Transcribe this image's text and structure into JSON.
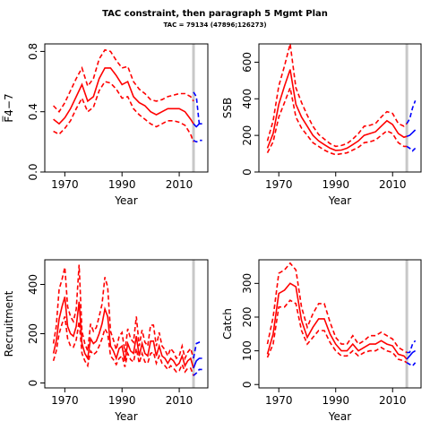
{
  "title": "TAC constraint, then paragraph 5 Mgmt Plan",
  "subtitle": "TAC = 79134 (47896;126273)",
  "colors": {
    "history": "#ff0000",
    "projection": "#0000ff",
    "vline": "#c8c8c8"
  },
  "chart_data": [
    {
      "type": "line",
      "ylabel": "F̅4−7",
      "xlabel": "Year",
      "xlim": [
        1963,
        2020
      ],
      "ylim": [
        0,
        0.85
      ],
      "xticks": [
        1970,
        1990,
        2010
      ],
      "yticks": [
        0.0,
        0.4,
        0.8
      ],
      "vline": 2015,
      "hist_years": [
        1966,
        1968,
        1970,
        1972,
        1974,
        1976,
        1978,
        1980,
        1982,
        1984,
        1986,
        1988,
        1990,
        1992,
        1994,
        1996,
        1998,
        2000,
        2002,
        2004,
        2006,
        2008,
        2010,
        2012,
        2014,
        2015
      ],
      "hist_mid": [
        0.35,
        0.32,
        0.36,
        0.42,
        0.5,
        0.58,
        0.47,
        0.5,
        0.62,
        0.69,
        0.69,
        0.64,
        0.58,
        0.6,
        0.5,
        0.46,
        0.44,
        0.4,
        0.38,
        0.4,
        0.42,
        0.42,
        0.42,
        0.4,
        0.35,
        0.32
      ],
      "hist_lo": [
        0.27,
        0.25,
        0.29,
        0.34,
        0.42,
        0.49,
        0.4,
        0.43,
        0.54,
        0.6,
        0.59,
        0.55,
        0.49,
        0.5,
        0.42,
        0.38,
        0.35,
        0.32,
        0.3,
        0.32,
        0.34,
        0.34,
        0.33,
        0.31,
        0.25,
        0.2
      ],
      "hist_hi": [
        0.44,
        0.4,
        0.46,
        0.54,
        0.62,
        0.69,
        0.57,
        0.62,
        0.75,
        0.81,
        0.8,
        0.74,
        0.69,
        0.7,
        0.6,
        0.55,
        0.52,
        0.48,
        0.47,
        0.48,
        0.5,
        0.51,
        0.52,
        0.52,
        0.5,
        0.47
      ],
      "proj_years": [
        2015,
        2016,
        2017,
        2018
      ],
      "proj_mid": [
        0.32,
        0.3,
        0.32,
        0.32
      ],
      "proj_lo": [
        0.21,
        0.2,
        0.21,
        0.21
      ],
      "proj_hi": [
        0.53,
        0.5,
        0.32,
        0.32
      ]
    },
    {
      "type": "line",
      "ylabel": "SSB",
      "xlabel": "Year",
      "xlim": [
        1963,
        2020
      ],
      "ylim": [
        0,
        700
      ],
      "xticks": [
        1970,
        1990,
        2010
      ],
      "yticks": [
        0,
        200,
        400,
        600
      ],
      "vline": 2015,
      "hist_years": [
        1966,
        1968,
        1970,
        1972,
        1974,
        1976,
        1978,
        1980,
        1982,
        1984,
        1986,
        1988,
        1990,
        1992,
        1994,
        1996,
        1998,
        2000,
        2002,
        2004,
        2006,
        2008,
        2010,
        2012,
        2014,
        2015
      ],
      "hist_mid": [
        130,
        210,
        370,
        470,
        560,
        370,
        300,
        250,
        200,
        170,
        150,
        130,
        118,
        120,
        130,
        150,
        170,
        200,
        210,
        220,
        250,
        280,
        260,
        210,
        190,
        195
      ],
      "hist_lo": [
        105,
        165,
        300,
        380,
        460,
        300,
        240,
        200,
        160,
        140,
        120,
        105,
        95,
        100,
        105,
        120,
        135,
        160,
        165,
        175,
        200,
        225,
        210,
        160,
        140,
        140
      ],
      "hist_hi": [
        170,
        280,
        470,
        580,
        700,
        460,
        380,
        310,
        250,
        205,
        180,
        155,
        140,
        145,
        155,
        180,
        210,
        250,
        255,
        265,
        300,
        330,
        320,
        265,
        250,
        265
      ],
      "proj_years": [
        2015,
        2016,
        2017,
        2018
      ],
      "proj_mid": [
        195,
        200,
        215,
        230
      ],
      "proj_lo": [
        140,
        130,
        115,
        130
      ],
      "proj_hi": [
        265,
        290,
        350,
        390
      ]
    },
    {
      "type": "line",
      "ylabel": "Recruitment",
      "xlabel": "Year",
      "xlim": [
        1963,
        2020
      ],
      "ylim": [
        -20,
        500
      ],
      "xticks": [
        1970,
        1990,
        2010
      ],
      "yticks": [
        0,
        200,
        400
      ],
      "vline": 2015,
      "hist_years": [
        1966,
        1967,
        1968,
        1969,
        1970,
        1971,
        1972,
        1973,
        1974,
        1975,
        1976,
        1977,
        1978,
        1979,
        1980,
        1981,
        1982,
        1983,
        1984,
        1985,
        1986,
        1987,
        1988,
        1989,
        1990,
        1991,
        1992,
        1993,
        1994,
        1995,
        1996,
        1997,
        1998,
        1999,
        2000,
        2001,
        2002,
        2003,
        2004,
        2005,
        2006,
        2007,
        2008,
        2009,
        2010,
        2011,
        2012,
        2013,
        2014,
        2015
      ],
      "hist_mid": [
        120,
        170,
        260,
        310,
        350,
        230,
        200,
        190,
        230,
        330,
        160,
        120,
        100,
        180,
        160,
        170,
        200,
        240,
        300,
        270,
        150,
        130,
        100,
        140,
        150,
        90,
        160,
        130,
        120,
        190,
        110,
        160,
        120,
        110,
        170,
        170,
        110,
        150,
        110,
        100,
        80,
        100,
        90,
        70,
        80,
        110,
        70,
        90,
        100,
        60
      ],
      "hist_lo": [
        90,
        130,
        200,
        240,
        270,
        180,
        150,
        145,
        175,
        250,
        120,
        90,
        70,
        130,
        115,
        125,
        150,
        180,
        220,
        200,
        110,
        95,
        75,
        100,
        110,
        65,
        120,
        95,
        85,
        140,
        80,
        120,
        85,
        80,
        120,
        125,
        80,
        110,
        80,
        70,
        55,
        70,
        60,
        45,
        50,
        75,
        45,
        60,
        60,
        30
      ],
      "hist_hi": [
        160,
        230,
        380,
        420,
        470,
        310,
        270,
        250,
        300,
        480,
        210,
        160,
        130,
        240,
        210,
        225,
        270,
        320,
        430,
        390,
        210,
        175,
        135,
        190,
        205,
        125,
        220,
        180,
        165,
        270,
        150,
        215,
        165,
        150,
        235,
        235,
        150,
        205,
        150,
        135,
        110,
        140,
        125,
        100,
        110,
        150,
        100,
        125,
        140,
        100
      ],
      "proj_years": [
        2015,
        2016,
        2017,
        2018
      ],
      "proj_mid": [
        60,
        90,
        100,
        100
      ],
      "proj_lo": [
        30,
        40,
        55,
        55
      ],
      "proj_hi": [
        100,
        160,
        165,
        165
      ]
    },
    {
      "type": "line",
      "ylabel": "Catch",
      "xlabel": "Year",
      "xlim": [
        1963,
        2020
      ],
      "ylim": [
        -10,
        370
      ],
      "xticks": [
        1970,
        1990,
        2010
      ],
      "yticks": [
        0,
        100,
        200,
        300
      ],
      "vline": 2015,
      "hist_years": [
        1966,
        1968,
        1970,
        1972,
        1974,
        1976,
        1978,
        1980,
        1982,
        1984,
        1986,
        1988,
        1990,
        1992,
        1994,
        1996,
        1998,
        2000,
        2002,
        2004,
        2006,
        2008,
        2010,
        2012,
        2014,
        2015
      ],
      "hist_mid": [
        90,
        150,
        270,
        280,
        300,
        290,
        190,
        140,
        170,
        195,
        195,
        150,
        120,
        100,
        100,
        120,
        100,
        110,
        120,
        120,
        130,
        120,
        115,
        90,
        85,
        75
      ],
      "hist_lo": [
        80,
        120,
        230,
        230,
        250,
        240,
        160,
        120,
        140,
        160,
        160,
        125,
        100,
        85,
        85,
        100,
        85,
        95,
        100,
        100,
        110,
        100,
        95,
        75,
        70,
        65
      ],
      "hist_hi": [
        120,
        200,
        330,
        340,
        360,
        340,
        230,
        170,
        210,
        240,
        240,
        185,
        140,
        120,
        120,
        145,
        120,
        130,
        145,
        145,
        155,
        145,
        135,
        110,
        100,
        95
      ],
      "proj_years": [
        2015,
        2016,
        2017,
        2018
      ],
      "proj_mid": [
        75,
        85,
        95,
        100
      ],
      "proj_lo": [
        65,
        60,
        55,
        65
      ],
      "proj_hi": [
        95,
        95,
        120,
        130
      ]
    }
  ]
}
